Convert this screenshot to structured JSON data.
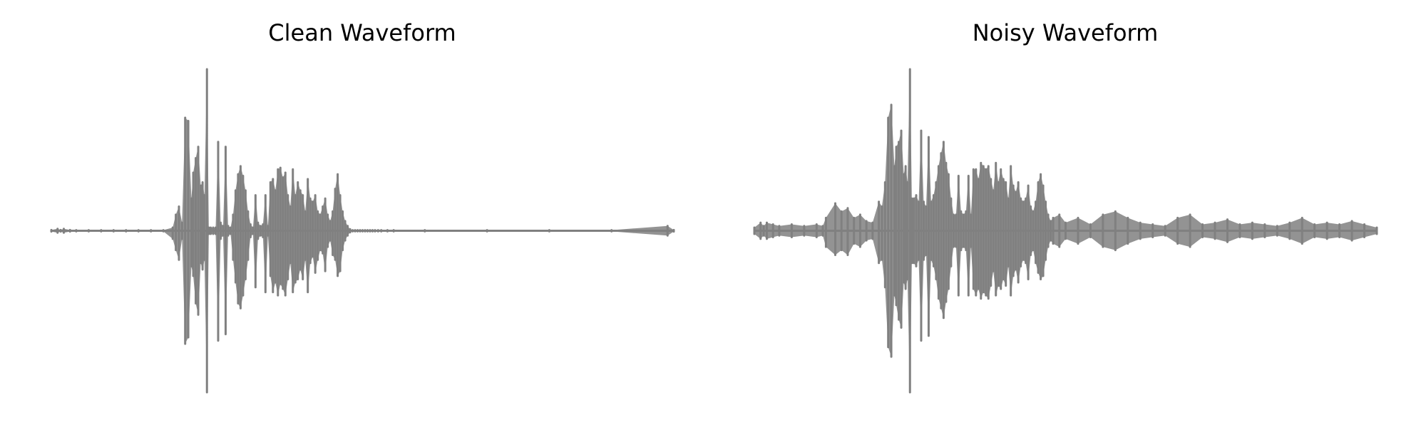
{
  "figure": {
    "title_left": "Clean Waveform",
    "title_right": "Noisy Waveform"
  },
  "colors": {
    "background": "#ffffff",
    "waveform": "#808080"
  },
  "chart_data": [
    {
      "type": "area",
      "title": "Clean Waveform",
      "axis": "off",
      "grid": false,
      "xlabel": "",
      "ylabel": "",
      "xlim": [
        0,
        1
      ],
      "ylim": [
        -1.0,
        1.0
      ],
      "series": [
        {
          "x": [
            0.0,
            0.01,
            0.015,
            0.02,
            0.03,
            0.04,
            0.06,
            0.08,
            0.1,
            0.12,
            0.14,
            0.16,
            0.18,
            0.195,
            0.2,
            0.205,
            0.21,
            0.215,
            0.22,
            0.225,
            0.228,
            0.232,
            0.236,
            0.24,
            0.243,
            0.246,
            0.25,
            0.253,
            0.256,
            0.26,
            0.264,
            0.268,
            0.272,
            0.276,
            0.28,
            0.284,
            0.288,
            0.292,
            0.296,
            0.3,
            0.304,
            0.308,
            0.312,
            0.316,
            0.32,
            0.324,
            0.328,
            0.332,
            0.336,
            0.34,
            0.344,
            0.348,
            0.352,
            0.356,
            0.36,
            0.364,
            0.368,
            0.372,
            0.376,
            0.38,
            0.384,
            0.388,
            0.392,
            0.396,
            0.4,
            0.404,
            0.408,
            0.412,
            0.416,
            0.42,
            0.424,
            0.428,
            0.432,
            0.436,
            0.44,
            0.444,
            0.448,
            0.452,
            0.456,
            0.46,
            0.464,
            0.468,
            0.472,
            0.476,
            0.48,
            0.484,
            0.488,
            0.492,
            0.496,
            0.5,
            0.504,
            0.508,
            0.512,
            0.516,
            0.52,
            0.525,
            0.53,
            0.54,
            0.55,
            0.6,
            0.7,
            0.8,
            0.9,
            0.99,
            1.0
          ],
          "y_max": [
            0.005,
            0.012,
            0.005,
            0.012,
            0.005,
            0.004,
            0.004,
            0.004,
            0.004,
            0.004,
            0.004,
            0.004,
            0.004,
            0.02,
            0.1,
            0.15,
            0.05,
            0.7,
            0.68,
            0.2,
            0.36,
            0.45,
            0.52,
            0.28,
            0.3,
            0.22,
            1.0,
            0.02,
            0.02,
            0.02,
            0.02,
            0.55,
            0.05,
            0.03,
            0.52,
            0.03,
            0.02,
            0.1,
            0.25,
            0.35,
            0.4,
            0.34,
            0.25,
            0.12,
            0.04,
            0.02,
            0.22,
            0.05,
            0.03,
            0.04,
            0.22,
            0.03,
            0.3,
            0.32,
            0.25,
            0.38,
            0.39,
            0.33,
            0.36,
            0.22,
            0.15,
            0.38,
            0.22,
            0.3,
            0.25,
            0.22,
            0.12,
            0.32,
            0.2,
            0.18,
            0.22,
            0.12,
            0.1,
            0.15,
            0.2,
            0.1,
            0.06,
            0.12,
            0.26,
            0.35,
            0.22,
            0.12,
            0.06,
            0.03,
            0.01,
            0.004,
            0.004,
            0.004,
            0.004,
            0.004,
            0.004,
            0.004,
            0.004,
            0.004,
            0.004,
            0.004,
            0.004,
            0.004,
            0.004,
            0.004,
            0.004,
            0.004,
            0.004,
            0.03,
            0.005
          ],
          "y_min": [
            -0.005,
            -0.012,
            -0.005,
            -0.012,
            -0.005,
            -0.004,
            -0.004,
            -0.004,
            -0.004,
            -0.004,
            -0.004,
            -0.004,
            -0.004,
            -0.05,
            -0.12,
            -0.18,
            -0.05,
            -0.7,
            -0.66,
            -0.22,
            -0.28,
            -0.45,
            -0.52,
            -0.2,
            -0.24,
            -0.18,
            -1.0,
            -0.02,
            -0.02,
            -0.02,
            -0.02,
            -0.68,
            -0.05,
            -0.03,
            -0.64,
            -0.03,
            -0.02,
            -0.18,
            -0.32,
            -0.45,
            -0.48,
            -0.4,
            -0.3,
            -0.18,
            -0.04,
            -0.02,
            -0.35,
            -0.05,
            -0.03,
            -0.04,
            -0.38,
            -0.03,
            -0.28,
            -0.38,
            -0.32,
            -0.4,
            -0.33,
            -0.36,
            -0.4,
            -0.3,
            -0.2,
            -0.38,
            -0.32,
            -0.3,
            -0.24,
            -0.3,
            -0.18,
            -0.38,
            -0.2,
            -0.16,
            -0.26,
            -0.18,
            -0.12,
            -0.14,
            -0.25,
            -0.1,
            -0.06,
            -0.15,
            -0.18,
            -0.28,
            -0.25,
            -0.12,
            -0.06,
            -0.03,
            -0.01,
            -0.004,
            -0.004,
            -0.004,
            -0.004,
            -0.004,
            -0.004,
            -0.004,
            -0.004,
            -0.004,
            -0.004,
            -0.004,
            -0.004,
            -0.004,
            -0.004,
            -0.004,
            -0.004,
            -0.004,
            -0.004,
            -0.03,
            -0.005
          ]
        }
      ]
    },
    {
      "type": "area",
      "title": "Noisy Waveform",
      "axis": "off",
      "grid": false,
      "xlabel": "",
      "ylabel": "",
      "xlim": [
        0,
        1
      ],
      "ylim": [
        -1.0,
        1.0
      ],
      "series": [
        {
          "x": [
            0.0,
            0.01,
            0.015,
            0.02,
            0.03,
            0.04,
            0.06,
            0.08,
            0.1,
            0.11,
            0.115,
            0.13,
            0.14,
            0.15,
            0.16,
            0.17,
            0.18,
            0.19,
            0.2,
            0.205,
            0.21,
            0.215,
            0.22,
            0.225,
            0.228,
            0.232,
            0.236,
            0.24,
            0.243,
            0.246,
            0.25,
            0.253,
            0.256,
            0.26,
            0.264,
            0.268,
            0.272,
            0.276,
            0.28,
            0.284,
            0.288,
            0.292,
            0.296,
            0.3,
            0.304,
            0.308,
            0.312,
            0.316,
            0.32,
            0.324,
            0.328,
            0.332,
            0.336,
            0.34,
            0.344,
            0.348,
            0.352,
            0.356,
            0.36,
            0.364,
            0.368,
            0.372,
            0.376,
            0.38,
            0.384,
            0.388,
            0.392,
            0.396,
            0.4,
            0.404,
            0.408,
            0.412,
            0.416,
            0.42,
            0.424,
            0.428,
            0.432,
            0.436,
            0.44,
            0.444,
            0.448,
            0.452,
            0.456,
            0.46,
            0.464,
            0.468,
            0.472,
            0.476,
            0.48,
            0.49,
            0.5,
            0.52,
            0.54,
            0.56,
            0.58,
            0.6,
            0.62,
            0.64,
            0.66,
            0.68,
            0.7,
            0.72,
            0.74,
            0.76,
            0.78,
            0.8,
            0.82,
            0.84,
            0.86,
            0.88,
            0.9,
            0.92,
            0.94,
            0.96,
            0.98,
            1.0
          ],
          "y_max": [
            0.02,
            0.05,
            0.03,
            0.05,
            0.04,
            0.03,
            0.04,
            0.03,
            0.04,
            0.03,
            0.08,
            0.17,
            0.12,
            0.14,
            0.08,
            0.1,
            0.06,
            0.05,
            0.18,
            0.15,
            0.3,
            0.7,
            0.78,
            0.4,
            0.52,
            0.55,
            0.62,
            0.35,
            0.4,
            0.3,
            1.0,
            0.2,
            0.2,
            0.22,
            0.18,
            0.62,
            0.18,
            0.15,
            0.58,
            0.18,
            0.22,
            0.3,
            0.4,
            0.48,
            0.55,
            0.42,
            0.35,
            0.2,
            0.1,
            0.1,
            0.34,
            0.12,
            0.1,
            0.12,
            0.34,
            0.1,
            0.38,
            0.38,
            0.32,
            0.42,
            0.4,
            0.38,
            0.4,
            0.32,
            0.25,
            0.42,
            0.3,
            0.38,
            0.32,
            0.3,
            0.2,
            0.4,
            0.28,
            0.24,
            0.3,
            0.2,
            0.18,
            0.2,
            0.28,
            0.15,
            0.12,
            0.18,
            0.3,
            0.35,
            0.28,
            0.18,
            0.1,
            0.06,
            0.08,
            0.1,
            0.05,
            0.08,
            0.04,
            0.1,
            0.12,
            0.08,
            0.05,
            0.04,
            0.03,
            0.08,
            0.1,
            0.04,
            0.05,
            0.07,
            0.04,
            0.05,
            0.04,
            0.03,
            0.05,
            0.08,
            0.04,
            0.05,
            0.04,
            0.06,
            0.04,
            0.02
          ],
          "y_min": [
            -0.02,
            -0.05,
            -0.03,
            -0.05,
            -0.04,
            -0.03,
            -0.04,
            -0.03,
            -0.04,
            -0.03,
            -0.1,
            -0.15,
            -0.12,
            -0.15,
            -0.08,
            -0.1,
            -0.06,
            -0.05,
            -0.2,
            -0.18,
            -0.35,
            -0.72,
            -0.78,
            -0.4,
            -0.46,
            -0.55,
            -0.6,
            -0.32,
            -0.36,
            -0.3,
            -1.0,
            -0.2,
            -0.2,
            -0.22,
            -0.18,
            -0.68,
            -0.18,
            -0.15,
            -0.65,
            -0.18,
            -0.22,
            -0.3,
            -0.42,
            -0.48,
            -0.54,
            -0.44,
            -0.36,
            -0.22,
            -0.1,
            -0.1,
            -0.4,
            -0.12,
            -0.1,
            -0.12,
            -0.4,
            -0.1,
            -0.36,
            -0.4,
            -0.36,
            -0.42,
            -0.38,
            -0.4,
            -0.42,
            -0.34,
            -0.25,
            -0.4,
            -0.34,
            -0.36,
            -0.3,
            -0.34,
            -0.22,
            -0.4,
            -0.28,
            -0.24,
            -0.32,
            -0.22,
            -0.18,
            -0.2,
            -0.3,
            -0.15,
            -0.12,
            -0.2,
            -0.26,
            -0.3,
            -0.28,
            -0.18,
            -0.1,
            -0.06,
            -0.08,
            -0.1,
            -0.05,
            -0.08,
            -0.04,
            -0.1,
            -0.12,
            -0.08,
            -0.05,
            -0.04,
            -0.03,
            -0.08,
            -0.1,
            -0.04,
            -0.05,
            -0.07,
            -0.04,
            -0.05,
            -0.04,
            -0.03,
            -0.05,
            -0.08,
            -0.04,
            -0.05,
            -0.04,
            -0.06,
            -0.04,
            -0.02
          ]
        }
      ]
    }
  ]
}
